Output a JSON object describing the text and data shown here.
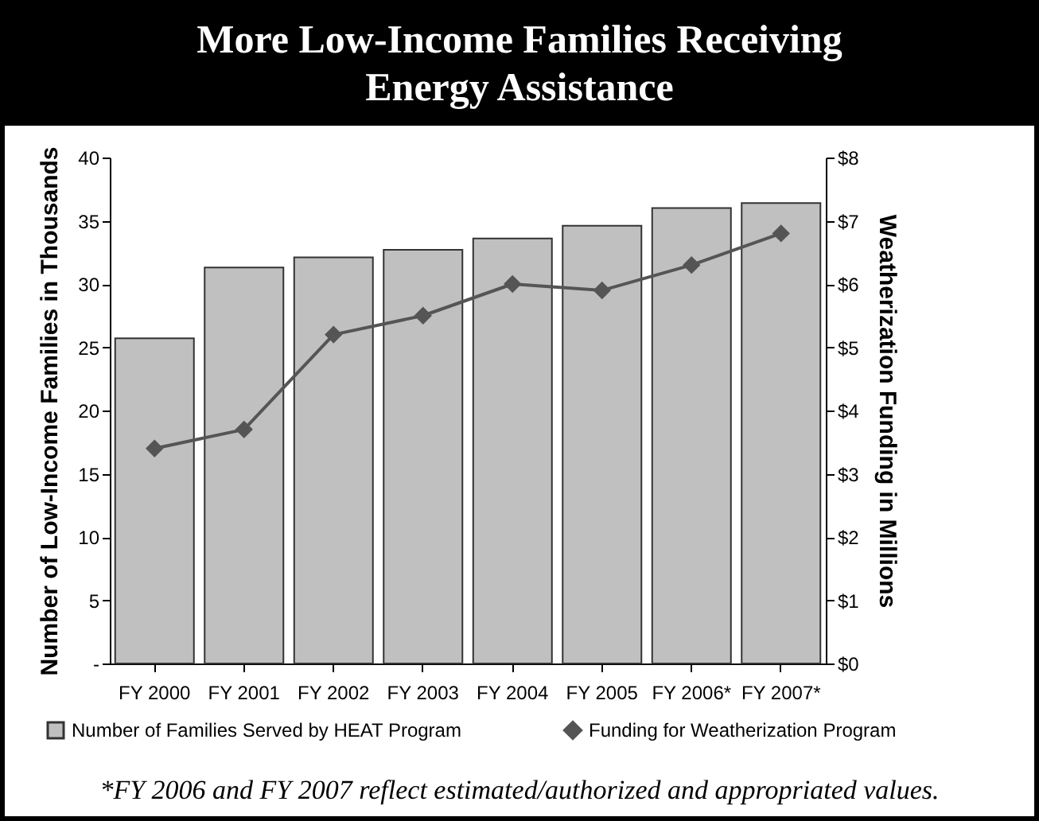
{
  "chart_data": {
    "type": "bar",
    "title": "More Low-Income Families Receiving Energy Assistance",
    "ylabel": "Number of Low-Income Families in Thousands",
    "y2label": "Weatherization Funding in Millions",
    "categories": [
      "FY 2000",
      "FY 2001",
      "FY 2002",
      "FY 2003",
      "FY 2004",
      "FY 2005",
      "FY 2006*",
      "FY 2007*"
    ],
    "series": [
      {
        "name": "Number of Families Served by HEAT Program",
        "color": "#c0c0c0",
        "values": [
          25.7,
          31.3,
          32.1,
          32.7,
          33.6,
          34.6,
          36.0,
          36.4
        ]
      },
      {
        "name": "Funding for Weatherization Program",
        "type": "line",
        "axis": "y2",
        "color": "#555555",
        "values": [
          3.4,
          3.7,
          5.2,
          5.5,
          6.0,
          5.9,
          6.3,
          6.8
        ]
      }
    ],
    "ylim": [
      0,
      40
    ],
    "yticks": [
      {
        "value": 0,
        "label": "-"
      },
      5,
      10,
      15,
      20,
      25,
      30,
      35,
      40
    ],
    "y2lim": [
      0,
      8
    ],
    "y2ticks": [
      {
        "value": 0,
        "label": "$0"
      },
      {
        "value": 1,
        "label": "$1"
      },
      {
        "value": 2,
        "label": "$2"
      },
      {
        "value": 3,
        "label": "$3"
      },
      {
        "value": 4,
        "label": "$4"
      },
      {
        "value": 5,
        "label": "$5"
      },
      {
        "value": 6,
        "label": "$6"
      },
      {
        "value": 7,
        "label": "$7"
      },
      {
        "value": 8,
        "label": "$8"
      }
    ],
    "marker": "diamond",
    "legend": "bottom",
    "grid": false,
    "annotations": [
      "*FY 2006 and FY 2007 reflect estimated/authorized and appropriated values."
    ]
  }
}
